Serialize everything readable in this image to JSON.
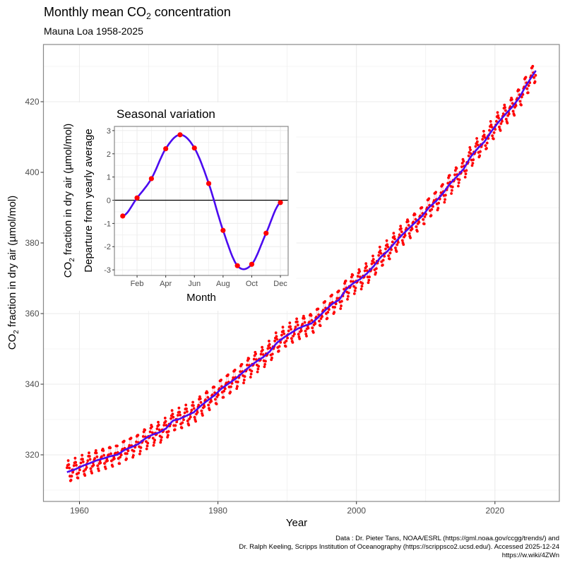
{
  "chart_data": [
    {
      "type": "line",
      "title": "Monthly mean CO",
      "title_sub": "2",
      "title_rest": " concentration",
      "subtitle": "Mauna Loa 1958-2025",
      "xlabel": "Year",
      "ylabel_prefix": "CO",
      "ylabel_sub": "2",
      "ylabel_rest": " fraction in dry air (µmol/mol)",
      "xlim": [
        1954.8,
        2029.3
      ],
      "ylim": [
        306.8,
        436.2
      ],
      "xticks": [
        "1960",
        "1980",
        "2000",
        "2020"
      ],
      "yticks": [
        "320",
        "340",
        "360",
        "380",
        "400",
        "420"
      ],
      "grid": true,
      "annual_mean_years": [
        1958,
        1959,
        1960,
        1961,
        1962,
        1963,
        1964,
        1965,
        1966,
        1967,
        1968,
        1969,
        1970,
        1971,
        1972,
        1973,
        1974,
        1975,
        1976,
        1977,
        1978,
        1979,
        1980,
        1981,
        1982,
        1983,
        1984,
        1985,
        1986,
        1987,
        1988,
        1989,
        1990,
        1991,
        1992,
        1993,
        1994,
        1995,
        1996,
        1997,
        1998,
        1999,
        2000,
        2001,
        2002,
        2003,
        2004,
        2005,
        2006,
        2007,
        2008,
        2009,
        2010,
        2011,
        2012,
        2013,
        2014,
        2015,
        2016,
        2017,
        2018,
        2019,
        2020,
        2021,
        2022,
        2023,
        2024,
        2025
      ],
      "annual_mean_values": [
        315.3,
        315.98,
        316.91,
        317.64,
        318.45,
        318.99,
        319.62,
        320.04,
        321.37,
        322.18,
        323.05,
        324.62,
        325.68,
        326.32,
        327.46,
        329.68,
        330.19,
        331.13,
        332.03,
        333.84,
        335.41,
        336.84,
        338.76,
        340.12,
        341.48,
        343.15,
        344.87,
        346.35,
        347.61,
        349.31,
        351.69,
        353.2,
        354.45,
        355.7,
        356.54,
        357.21,
        358.96,
        360.97,
        362.74,
        363.88,
        366.84,
        368.54,
        369.71,
        371.32,
        373.45,
        375.98,
        377.7,
        379.98,
        382.09,
        384.02,
        385.83,
        387.64,
        390.1,
        391.85,
        394.06,
        396.74,
        398.81,
        401.01,
        404.41,
        406.76,
        408.72,
        411.65,
        414.21,
        416.41,
        418.53,
        421.08,
        424.61,
        427.6
      ],
      "series": [
        {
          "kind": "monthly points",
          "color": "#ff0000",
          "start": "1958-03",
          "end": "2025-11"
        },
        {
          "kind": "trend",
          "color": "#4b0af0"
        }
      ],
      "caption": [
        "Data : Dr. Pieter Tans, NOAA/ESRL (https://gml.noaa.gov/ccgg/trends/) and",
        "Dr. Ralph Keeling, Scripps Institution of Oceanography (https://scrippsco2.ucsd.edu/). Accessed 2025-12-24",
        "https://w.wiki/4ZWn"
      ]
    },
    {
      "type": "line",
      "title": "Seasonal variation",
      "xlabel": "Month",
      "ylabel_line1_prefix": "CO",
      "ylabel_line1_sub": "2",
      "ylabel_line1_rest": " fraction in dry air (µmol/mol)",
      "ylabel_line2": "Departure from yearly average",
      "categories": [
        "Jan",
        "Feb",
        "Mar",
        "Apr",
        "May",
        "Jun",
        "Jul",
        "Aug",
        "Sep",
        "Oct",
        "Nov",
        "Dec"
      ],
      "values": [
        -0.68,
        0.1,
        0.93,
        2.22,
        2.82,
        2.25,
        0.72,
        -1.3,
        -2.82,
        -2.76,
        -1.42,
        -0.1
      ],
      "xticks": [
        "Feb",
        "Apr",
        "Jun",
        "Aug",
        "Oct",
        "Dec"
      ],
      "yticks": [
        "-3",
        "-2",
        "-1",
        "0",
        "1",
        "2",
        "3"
      ],
      "xlim": [
        0.42,
        12.54
      ],
      "ylim": [
        -3.24,
        3.18
      ],
      "hline": 0,
      "grid": true,
      "colors": {
        "points": "#ff0000",
        "curve": "#4b0af0"
      }
    }
  ]
}
